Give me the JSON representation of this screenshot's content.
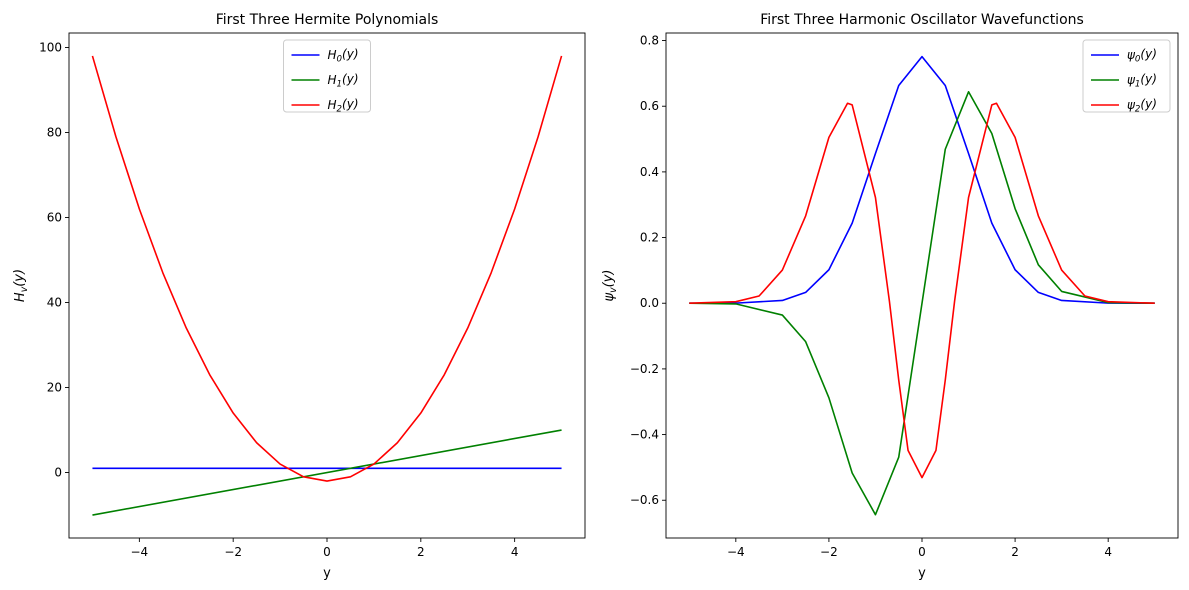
{
  "chart_data": [
    {
      "type": "line",
      "title": "First Three Hermite Polynomials",
      "xlabel": "y",
      "ylabel": {
        "sym": "H",
        "sub": "v",
        "arg": "(y)"
      },
      "xlim": [
        -5.5,
        5.5
      ],
      "ylim": [
        -15.4,
        103.4
      ],
      "xticks": [
        -4,
        -2,
        0,
        2,
        4
      ],
      "yticks": [
        0,
        20,
        40,
        60,
        80,
        100
      ],
      "xtick_labels": [
        "−4",
        "−2",
        "0",
        "2",
        "4"
      ],
      "ytick_labels": [
        "0",
        "20",
        "40",
        "60",
        "80",
        "100"
      ],
      "legend_position": "upper center",
      "grid": false,
      "series": [
        {
          "name": {
            "sym": "H",
            "sub": "0",
            "arg": "(y)"
          },
          "color": "#0000ff",
          "points": [
            [
              -5,
              1
            ],
            [
              5,
              1
            ]
          ]
        },
        {
          "name": {
            "sym": "H",
            "sub": "1",
            "arg": "(y)"
          },
          "color": "#008000",
          "points": [
            [
              -5,
              -10
            ],
            [
              5,
              10
            ]
          ]
        },
        {
          "name": {
            "sym": "H",
            "sub": "2",
            "arg": "(y)"
          },
          "color": "#ff0000",
          "points": [
            [
              -5,
              98
            ],
            [
              -4.5,
              79
            ],
            [
              -4,
              62
            ],
            [
              -3.5,
              47
            ],
            [
              -3,
              34
            ],
            [
              -2.5,
              23
            ],
            [
              -2,
              14
            ],
            [
              -1.5,
              7
            ],
            [
              -1,
              2
            ],
            [
              -0.5,
              -1
            ],
            [
              0,
              -2
            ],
            [
              0.5,
              -1
            ],
            [
              1,
              2
            ],
            [
              1.5,
              7
            ],
            [
              2,
              14
            ],
            [
              2.5,
              23
            ],
            [
              3,
              34
            ],
            [
              3.5,
              47
            ],
            [
              4,
              62
            ],
            [
              4.5,
              79
            ],
            [
              5,
              98
            ]
          ]
        }
      ]
    },
    {
      "type": "line",
      "title": "First Three Harmonic Oscillator Wavefunctions",
      "xlabel": "y",
      "ylabel": {
        "sym": "ψ",
        "sub": "v",
        "arg": "(y)"
      },
      "xlim": [
        -5.5,
        5.5
      ],
      "ylim": [
        -0.715,
        0.823
      ],
      "xticks": [
        -4,
        -2,
        0,
        2,
        4
      ],
      "yticks": [
        -0.6,
        -0.4,
        -0.2,
        0.0,
        0.2,
        0.4,
        0.6,
        0.8
      ],
      "xtick_labels": [
        "−4",
        "−2",
        "0",
        "2",
        "4"
      ],
      "ytick_labels": [
        "−0.6",
        "−0.4",
        "−0.2",
        "0.0",
        "0.2",
        "0.4",
        "0.6",
        "0.8"
      ],
      "legend_position": "upper right",
      "grid": false,
      "series": [
        {
          "name": {
            "sym": "ψ",
            "sub": "0",
            "arg": "(y)"
          },
          "color": "#0000ff",
          "points": [
            [
              -5,
              0.0
            ],
            [
              -4,
              0.0003
            ],
            [
              -3,
              0.0084
            ],
            [
              -2.5,
              0.033
            ],
            [
              -2,
              0.102
            ],
            [
              -1.5,
              0.244
            ],
            [
              -1,
              0.456
            ],
            [
              -0.5,
              0.663
            ],
            [
              0,
              0.751
            ],
            [
              0.5,
              0.663
            ],
            [
              1,
              0.456
            ],
            [
              1.5,
              0.244
            ],
            [
              2,
              0.102
            ],
            [
              2.5,
              0.033
            ],
            [
              3,
              0.0084
            ],
            [
              4,
              0.0003
            ],
            [
              5,
              0.0
            ]
          ]
        },
        {
          "name": {
            "sym": "ψ",
            "sub": "1",
            "arg": "(y)"
          },
          "color": "#008000",
          "points": [
            [
              -5,
              0.0
            ],
            [
              -4,
              -0.002
            ],
            [
              -3,
              -0.036
            ],
            [
              -2.5,
              -0.117
            ],
            [
              -2,
              -0.288
            ],
            [
              -1.5,
              -0.517
            ],
            [
              -1,
              -0.644
            ],
            [
              -0.5,
              -0.469
            ],
            [
              0,
              0.0
            ],
            [
              0.5,
              0.469
            ],
            [
              1,
              0.644
            ],
            [
              1.5,
              0.517
            ],
            [
              2,
              0.288
            ],
            [
              2.5,
              0.117
            ],
            [
              3,
              0.036
            ],
            [
              4,
              0.002
            ],
            [
              5,
              0.0
            ]
          ]
        },
        {
          "name": {
            "sym": "ψ",
            "sub": "2",
            "arg": "(y)"
          },
          "color": "#ff0000",
          "points": [
            [
              -5,
              0.0
            ],
            [
              -4,
              0.0047
            ],
            [
              -3.5,
              0.022
            ],
            [
              -3,
              0.101
            ],
            [
              -2.5,
              0.266
            ],
            [
              -2,
              0.505
            ],
            [
              -1.6,
              0.609
            ],
            [
              -1.5,
              0.604
            ],
            [
              -1,
              0.322
            ],
            [
              -0.7,
              0.006
            ],
            [
              -0.5,
              -0.234
            ],
            [
              -0.3,
              -0.448
            ],
            [
              0,
              -0.531
            ],
            [
              0.3,
              -0.448
            ],
            [
              0.5,
              -0.234
            ],
            [
              0.7,
              0.006
            ],
            [
              1,
              0.322
            ],
            [
              1.5,
              0.604
            ],
            [
              1.6,
              0.609
            ],
            [
              2,
              0.505
            ],
            [
              2.5,
              0.266
            ],
            [
              3,
              0.101
            ],
            [
              3.5,
              0.022
            ],
            [
              4,
              0.0047
            ],
            [
              5,
              0.0
            ]
          ]
        }
      ]
    }
  ]
}
